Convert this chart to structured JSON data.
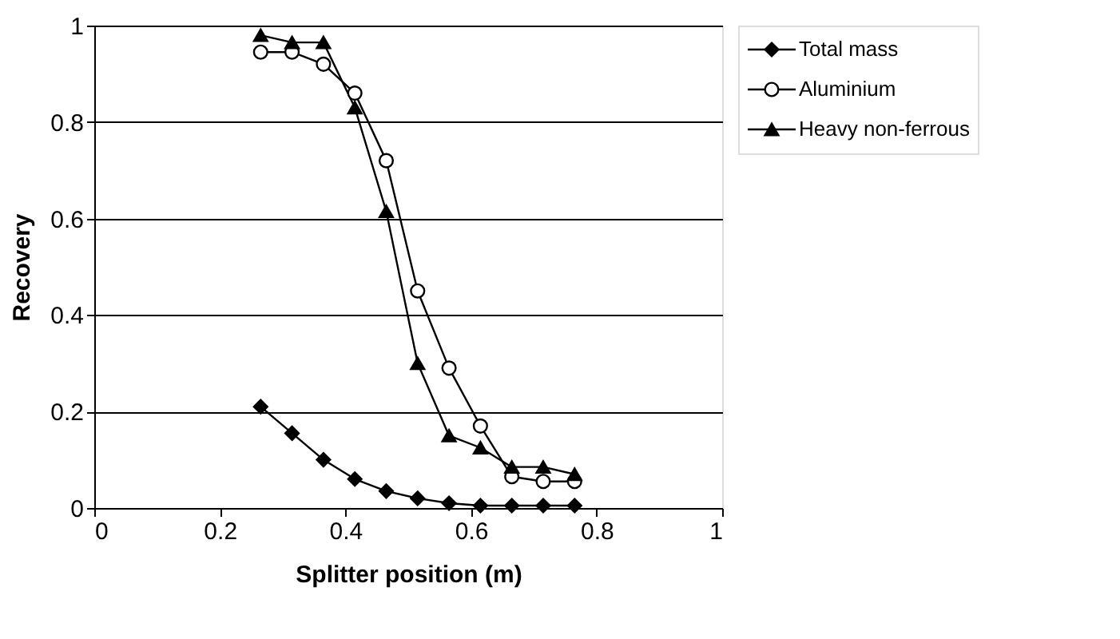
{
  "chart_data": {
    "type": "line",
    "xlabel": "Splitter position (m)",
    "ylabel": "Recovery",
    "x": [
      0.265,
      0.315,
      0.365,
      0.415,
      0.465,
      0.515,
      0.565,
      0.615,
      0.665,
      0.715,
      0.765
    ],
    "series": [
      {
        "name": "Total mass",
        "color": "#000000",
        "marker": "diamond",
        "values": [
          0.21,
          0.155,
          0.1,
          0.06,
          0.035,
          0.02,
          0.01,
          0.005,
          0.005,
          0.005,
          0.005
        ]
      },
      {
        "name": "Aluminium",
        "color": "#000000",
        "marker": "circle",
        "values": [
          0.945,
          0.945,
          0.92,
          0.86,
          0.72,
          0.45,
          0.29,
          0.17,
          0.065,
          0.055,
          0.055
        ]
      },
      {
        "name": "Heavy non-ferrous",
        "color": "#000000",
        "marker": "triangle",
        "values": [
          0.98,
          0.965,
          0.965,
          0.83,
          0.615,
          0.3,
          0.15,
          0.125,
          0.085,
          0.085,
          0.07
        ]
      }
    ],
    "xlim": [
      0,
      1
    ],
    "xticks": [
      0,
      0.2,
      0.4,
      0.6,
      0.8,
      1
    ],
    "ylim": [
      0,
      1
    ],
    "yticks": [
      0,
      0.2,
      0.4,
      0.6,
      0.8,
      1
    ],
    "grid": "y",
    "legend": "right",
    "line_style": "solid"
  }
}
